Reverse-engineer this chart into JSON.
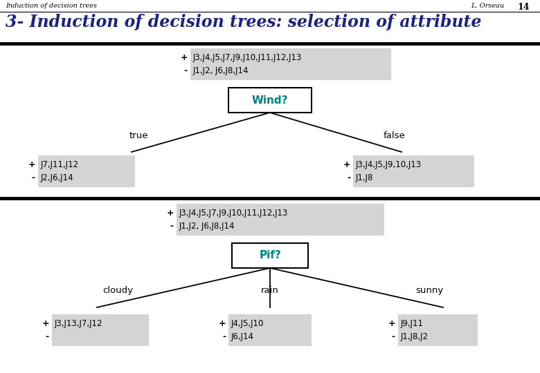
{
  "header_left": "Induction of decision trees",
  "header_right": "L. Orseau",
  "page_num": "14",
  "title": "3- Induction of decision trees: selection of attribute",
  "bg_color": "#ffffff",
  "box_fill": "#d4d4d4",
  "node_fill": "#ffffff",
  "node_text_color": "#008080",
  "tree1": {
    "root_label": "Wind?",
    "root_plus": "J3,J4,J5,J7,J9,J10,J11,J12,J13",
    "root_minus": "J1,J2, J6,J8,J14",
    "branches": [
      "true",
      "false"
    ],
    "leaf_boxes": [
      {
        "plus": "J7,J11,J12",
        "minus": "J2,J6,J14"
      },
      {
        "plus": "J3,J4,J5,J9,10,J13",
        "minus": "J1,J8"
      }
    ]
  },
  "tree2": {
    "root_label": "Pif?",
    "root_plus": "J3,J4,J5,J7,J9,J10,J11,J12,J13",
    "root_minus": "J1,J2, J6,J8,J14",
    "branches": [
      "cloudy",
      "rain",
      "sunny"
    ],
    "leaf_boxes": [
      {
        "plus": "J3,J13,J7,J12",
        "minus": ""
      },
      {
        "plus": "J4,J5,J10",
        "minus": "J6,J14"
      },
      {
        "plus": "J9,J11",
        "minus": "J1,J8,J2"
      }
    ]
  }
}
